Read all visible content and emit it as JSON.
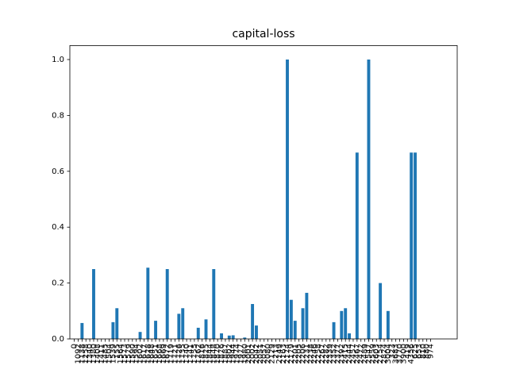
{
  "chart_data": {
    "type": "bar",
    "title": "capital-loss",
    "categories": [
      "0",
      "1092",
      "1138",
      "1258",
      "1340",
      "1380",
      "1408",
      "1411",
      "1485",
      "1504",
      "1539",
      "155",
      "1564",
      "1573",
      "1579",
      "1590",
      "1594",
      "1602",
      "1617",
      "1628",
      "1648",
      "1651",
      "1668",
      "1669",
      "1672",
      "1719",
      "1721",
      "1726",
      "1735",
      "1740",
      "1741",
      "1755",
      "1762",
      "1816",
      "1825",
      "1844",
      "1848",
      "1870",
      "1876",
      "1887",
      "1902",
      "1944",
      "1974",
      "1977",
      "1980",
      "2001",
      "2002",
      "2042",
      "2051",
      "2057",
      "2080",
      "2129",
      "213",
      "2149",
      "2163",
      "2174",
      "2179",
      "2201",
      "2205",
      "2206",
      "2231",
      "2238",
      "2246",
      "2258",
      "2267",
      "2282",
      "2339",
      "2352",
      "2377",
      "2392",
      "2415",
      "2444",
      "2457",
      "2467",
      "2472",
      "2489",
      "2547",
      "2559",
      "2603",
      "2754",
      "2824",
      "3004",
      "323",
      "3683",
      "3770",
      "3900",
      "419",
      "4356",
      "625",
      "653",
      "810",
      "880",
      "974"
    ],
    "values": [
      0,
      0,
      0.057,
      0,
      0,
      0.25,
      0,
      0,
      0,
      0,
      0.06,
      0.11,
      0,
      0,
      0,
      0,
      0,
      0.025,
      0,
      0.255,
      0,
      0.065,
      0,
      0,
      0.25,
      0,
      0,
      0.09,
      0.11,
      0,
      0,
      0,
      0.04,
      0,
      0.07,
      0,
      0.25,
      0,
      0.02,
      0,
      0.012,
      0.013,
      0,
      0,
      0.005,
      0,
      0.125,
      0.048,
      0,
      0,
      0,
      0,
      0,
      0,
      0,
      1.0,
      0.14,
      0.065,
      0,
      0.11,
      0.165,
      0,
      0,
      0,
      0,
      0,
      0,
      0.06,
      0,
      0.1,
      0.11,
      0.02,
      0,
      0.667,
      0,
      0,
      1.0,
      0,
      0,
      0.2,
      0,
      0.1,
      0,
      0,
      0,
      0,
      0,
      0.667,
      0.667,
      0,
      0,
      0,
      0
    ],
    "color": "#1f77b4",
    "ylim": [
      0,
      1.05
    ],
    "yticks": [
      {
        "value": 0,
        "label": "0.0"
      },
      0.2,
      0.4,
      0.6,
      0.8,
      {
        "value": 1,
        "label": "1.0"
      }
    ],
    "grid": false
  }
}
